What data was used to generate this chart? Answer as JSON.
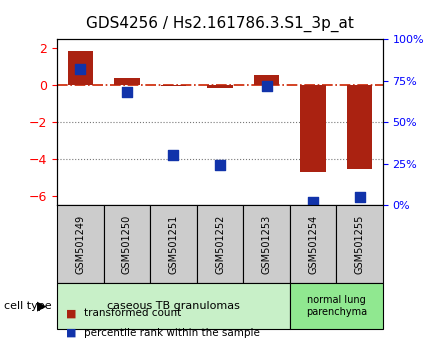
{
  "title": "GDS4256 / Hs2.161786.3.S1_3p_at",
  "samples": [
    "GSM501249",
    "GSM501250",
    "GSM501251",
    "GSM501252",
    "GSM501253",
    "GSM501254",
    "GSM501255"
  ],
  "transformed_count": [
    1.85,
    0.38,
    -0.04,
    -0.18,
    0.55,
    -4.7,
    -4.55
  ],
  "percentile_rank": [
    82,
    68,
    30,
    24,
    72,
    2,
    5
  ],
  "ylim_left": [
    -6.5,
    2.5
  ],
  "ylim_right": [
    0,
    100
  ],
  "yticks_left": [
    2,
    0,
    -2,
    -4,
    -6
  ],
  "yticks_right": [
    0,
    25,
    50,
    75,
    100
  ],
  "bar_color": "#aa2211",
  "dot_color": "#1133aa",
  "hline_color": "#cc2200",
  "dotline_color": "#777777",
  "group1_samples": [
    0,
    1,
    2,
    3,
    4
  ],
  "group2_samples": [
    5,
    6
  ],
  "group1_label": "caseous TB granulomas",
  "group2_label": "normal lung\nparenchyma",
  "group1_bg": "#c8f0c8",
  "group2_bg": "#90e890",
  "cell_type_label": "cell type",
  "legend_red_label": "transformed count",
  "legend_blue_label": "percentile rank within the sample",
  "bar_width": 0.55,
  "dot_size": 60,
  "xticklabel_fontsize": 7,
  "title_fontsize": 11
}
